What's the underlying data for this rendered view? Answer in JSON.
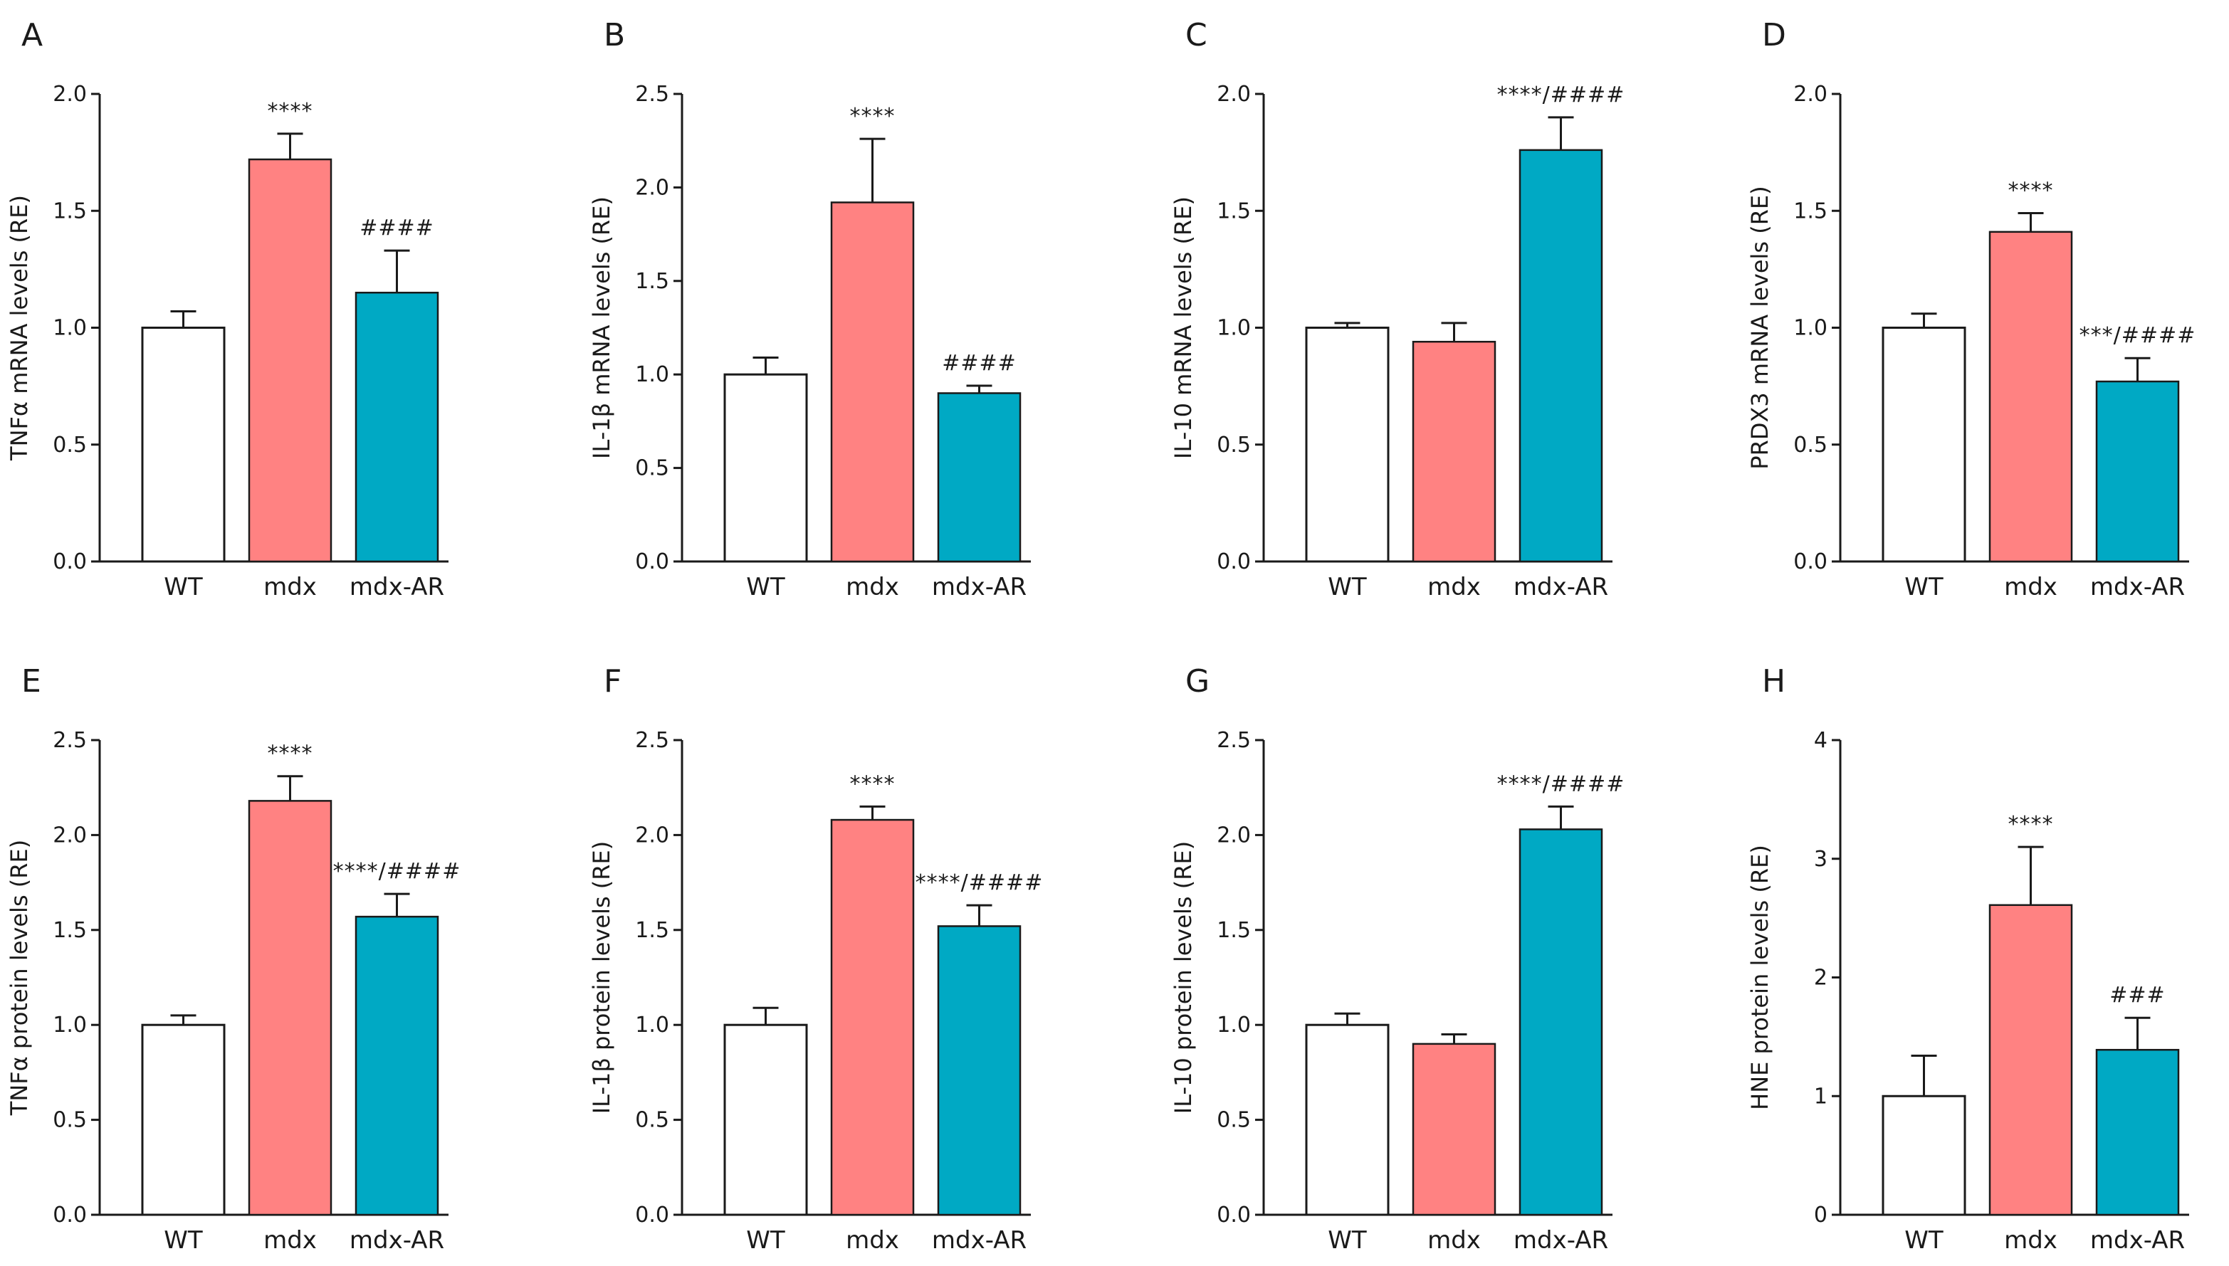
{
  "colors": {
    "WT": "#ffffff",
    "mdx": "#ff8282",
    "mdx-AR": "#00a9c4",
    "stroke": "#1a1a1a"
  },
  "chart_data": [
    {
      "type": "bar",
      "panel": "A",
      "ylabel": "TNFα mRNA levels (RE)",
      "categories": [
        "WT",
        "mdx",
        "mdx-AR"
      ],
      "values": [
        1.0,
        1.72,
        1.15
      ],
      "errors": [
        0.07,
        0.11,
        0.18
      ],
      "annotations": [
        "",
        "****",
        "####"
      ],
      "ylim": [
        0,
        2.0
      ],
      "yticks": [
        0,
        0.5,
        1.0,
        1.5,
        2.0
      ],
      "tick_labels": [
        "0.0",
        "0.5",
        "1.0",
        "1.5",
        "2.0"
      ]
    },
    {
      "type": "bar",
      "panel": "B",
      "ylabel": "IL-1β mRNA levels (RE)",
      "categories": [
        "WT",
        "mdx",
        "mdx-AR"
      ],
      "values": [
        1.0,
        1.92,
        0.9
      ],
      "errors": [
        0.09,
        0.34,
        0.04
      ],
      "annotations": [
        "",
        "****",
        "####"
      ],
      "ylim": [
        0,
        2.5
      ],
      "yticks": [
        0,
        0.5,
        1.0,
        1.5,
        2.0,
        2.5
      ],
      "tick_labels": [
        "0.0",
        "0.5",
        "1.0",
        "1.5",
        "2.0",
        "2.5"
      ]
    },
    {
      "type": "bar",
      "panel": "C",
      "ylabel": "IL-10 mRNA levels (RE)",
      "categories": [
        "WT",
        "mdx",
        "mdx-AR"
      ],
      "values": [
        1.0,
        0.94,
        1.76
      ],
      "errors": [
        0.02,
        0.08,
        0.14
      ],
      "annotations": [
        "",
        "",
        "****/####"
      ],
      "ylim": [
        0,
        2.0
      ],
      "yticks": [
        0,
        0.5,
        1.0,
        1.5,
        2.0
      ],
      "tick_labels": [
        "0.0",
        "0.5",
        "1.0",
        "1.5",
        "2.0"
      ]
    },
    {
      "type": "bar",
      "panel": "D",
      "ylabel": "PRDX3 mRNA levels (RE)",
      "categories": [
        "WT",
        "mdx",
        "mdx-AR"
      ],
      "values": [
        1.0,
        1.41,
        0.77
      ],
      "errors": [
        0.06,
        0.08,
        0.1
      ],
      "annotations": [
        "",
        "****",
        "***/####"
      ],
      "ylim": [
        0,
        2.0
      ],
      "yticks": [
        0,
        0.5,
        1.0,
        1.5,
        2.0
      ],
      "tick_labels": [
        "0.0",
        "0.5",
        "1.0",
        "1.5",
        "2.0"
      ]
    },
    {
      "type": "bar",
      "panel": "E",
      "ylabel": "TNFα protein levels (RE)",
      "categories": [
        "WT",
        "mdx",
        "mdx-AR"
      ],
      "values": [
        1.0,
        2.18,
        1.57
      ],
      "errors": [
        0.05,
        0.13,
        0.12
      ],
      "annotations": [
        "",
        "****",
        "****/####"
      ],
      "ylim": [
        0,
        2.5
      ],
      "yticks": [
        0,
        0.5,
        1.0,
        1.5,
        2.0,
        2.5
      ],
      "tick_labels": [
        "0.0",
        "0.5",
        "1.0",
        "1.5",
        "2.0",
        "2.5"
      ]
    },
    {
      "type": "bar",
      "panel": "F",
      "ylabel": "IL-1β protein levels (RE)",
      "categories": [
        "WT",
        "mdx",
        "mdx-AR"
      ],
      "values": [
        1.0,
        2.08,
        1.52
      ],
      "errors": [
        0.09,
        0.07,
        0.11
      ],
      "annotations": [
        "",
        "****",
        "****/####"
      ],
      "ylim": [
        0,
        2.5
      ],
      "yticks": [
        0,
        0.5,
        1.0,
        1.5,
        2.0,
        2.5
      ],
      "tick_labels": [
        "0.0",
        "0.5",
        "1.0",
        "1.5",
        "2.0",
        "2.5"
      ]
    },
    {
      "type": "bar",
      "panel": "G",
      "ylabel": "IL-10 protein levels (RE)",
      "categories": [
        "WT",
        "mdx",
        "mdx-AR"
      ],
      "values": [
        1.0,
        0.9,
        2.03
      ],
      "errors": [
        0.06,
        0.05,
        0.12
      ],
      "annotations": [
        "",
        "",
        "****/####"
      ],
      "ylim": [
        0,
        2.5
      ],
      "yticks": [
        0,
        0.5,
        1.0,
        1.5,
        2.0,
        2.5
      ],
      "tick_labels": [
        "0.0",
        "0.5",
        "1.0",
        "1.5",
        "2.0",
        "2.5"
      ]
    },
    {
      "type": "bar",
      "panel": "H",
      "ylabel": "HNE protein levels (RE)",
      "categories": [
        "WT",
        "mdx",
        "mdx-AR"
      ],
      "values": [
        1.0,
        2.61,
        1.39
      ],
      "errors": [
        0.34,
        0.49,
        0.27
      ],
      "annotations": [
        "",
        "****",
        "###"
      ],
      "ylim": [
        0,
        4
      ],
      "yticks": [
        0,
        1,
        2,
        3,
        4
      ],
      "tick_labels": [
        "0",
        "1",
        "2",
        "3",
        "4"
      ]
    }
  ]
}
